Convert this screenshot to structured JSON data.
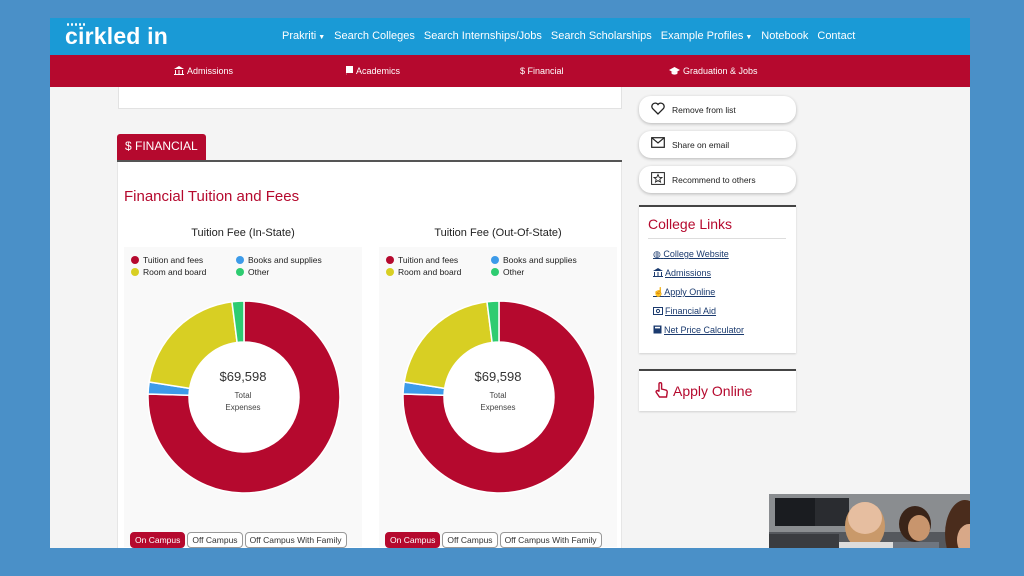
{
  "header": {
    "logo": "cirkled in",
    "nav": [
      "Prakriti",
      "Search Colleges",
      "Search Internships/Jobs",
      "Search Scholarships",
      "Example Profiles",
      "Notebook",
      "Contact"
    ]
  },
  "subnav": {
    "admissions": "Admissions",
    "academics": "Academics",
    "financial": "Financial",
    "graduation": "Graduation & Jobs"
  },
  "financial": {
    "tab_label": "$ FINANCIAL",
    "section_title": "Financial Tuition and Fees"
  },
  "legend": {
    "tuition": "Tuition and fees",
    "books": "Books and supplies",
    "room": "Room and board",
    "other": "Other"
  },
  "center": {
    "total_label_1": "Total",
    "total_label_2": "Expenses"
  },
  "buttons": {
    "on_campus": "On Campus",
    "off_campus": "Off Campus",
    "off_family": "Off Campus With Family"
  },
  "chart_data": [
    {
      "type": "pie",
      "title": "Tuition Fee (In-State)",
      "total_value": "$69,598",
      "categories": [
        "Tuition and fees",
        "Books and supplies",
        "Room and board",
        "Other"
      ],
      "values": [
        75.5,
        2.0,
        20.5,
        2.0
      ],
      "colors": [
        "#b5092e",
        "#3d9be9",
        "#d8cf23",
        "#2ecc71"
      ]
    },
    {
      "type": "pie",
      "title": "Tuition Fee (Out-Of-State)",
      "total_value": "$69,598",
      "categories": [
        "Tuition and fees",
        "Books and supplies",
        "Room and board",
        "Other"
      ],
      "values": [
        75.5,
        2.0,
        20.5,
        2.0
      ],
      "colors": [
        "#b5092e",
        "#3d9be9",
        "#d8cf23",
        "#2ecc71"
      ]
    }
  ],
  "actions": {
    "remove": "Remove from list",
    "share": "Share on email",
    "recommend": "Recommend to others"
  },
  "college_links": {
    "title": "College Links",
    "items": [
      "College Website",
      "Admissions",
      "Apply Online",
      "Financial Aid",
      "Net Price Calculator"
    ]
  },
  "apply": {
    "label": "Apply Online"
  },
  "colors": {
    "brand_blue": "#1a9ad6",
    "brand_red": "#b5092e"
  }
}
